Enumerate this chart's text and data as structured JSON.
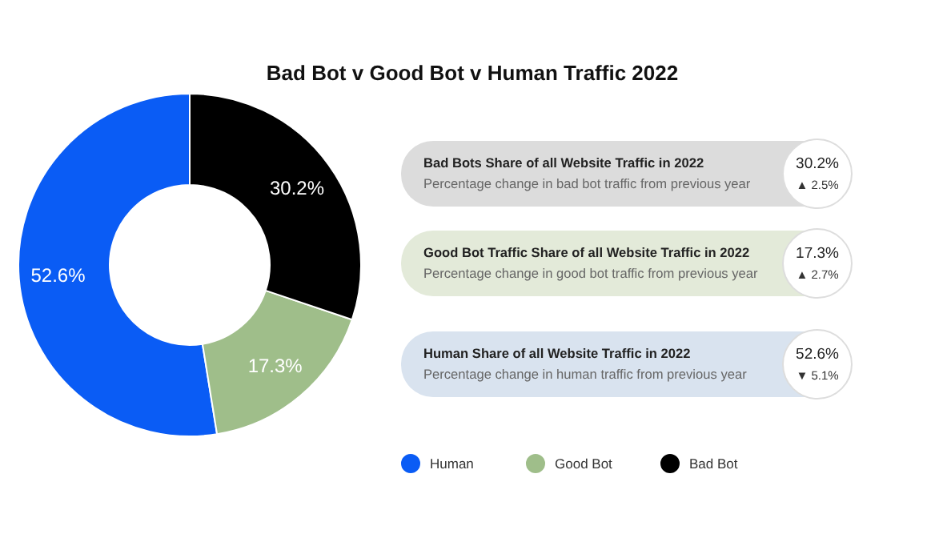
{
  "chart_data": [
    {
      "type": "donut",
      "title": "Bad Bot v Good Bot v Human Traffic 2022",
      "categories": [
        "Human",
        "Good Bot",
        "Bad Bot"
      ],
      "values": [
        52.6,
        17.3,
        30.2
      ],
      "colors": [
        "#0a5cf5",
        "#9fbe8a",
        "#000000"
      ],
      "value_labels": [
        "52.6%",
        "17.3%",
        "30.2%"
      ],
      "legend": "bottom"
    },
    {
      "type": "other",
      "colors": [
        "#dcdcdc",
        "#e3ead9",
        "#d9e3ef"
      ],
      "annotations": [
        "Bad Bots Share of all Website Traffic in 2022",
        "Percentage change in bad bot traffic from previous year",
        "30.2%",
        "▲ 2.5%",
        "Good Bot Traffic Share of all Website Traffic in 2022",
        "Percentage change in good bot traffic from previous year",
        "17.3%",
        "▲ 2.7%",
        "Human Share of all Website Traffic in 2022",
        "Percentage change in human traffic from previous year",
        "52.6%",
        "▼ 5.1%"
      ]
    }
  ]
}
